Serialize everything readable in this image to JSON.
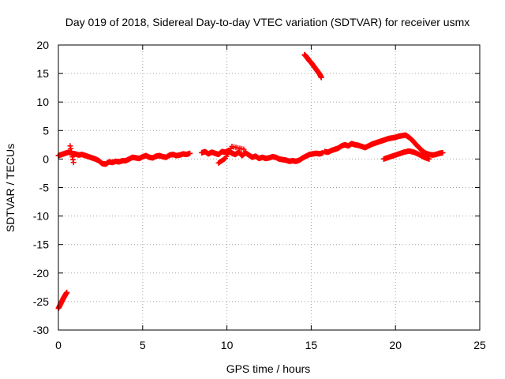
{
  "chart_data": {
    "type": "scatter",
    "title": "Day 019 of 2018, Sidereal Day-to-day VTEC variation (SDTVAR) for receiver usmx",
    "xlabel": "GPS time / hours",
    "ylabel": "SDTVAR / TECUs",
    "xlim": [
      0,
      25
    ],
    "ylim": [
      -30,
      20
    ],
    "xticks": [
      "0",
      "5",
      "10",
      "15",
      "20",
      "25"
    ],
    "yticks": [
      "20",
      "15",
      "10",
      "5",
      "0",
      "-5",
      "-10",
      "-15",
      "-20",
      "-25",
      "-30"
    ],
    "xtick_values": [
      0,
      5,
      10,
      15,
      20,
      25
    ],
    "ytick_values": [
      20,
      15,
      10,
      5,
      0,
      -5,
      -10,
      -15,
      -20,
      -25,
      -30
    ],
    "grid": true,
    "marker": "+",
    "color": "#ff0000",
    "series": [
      {
        "name": "usmx SDTVAR",
        "segments": [
          {
            "x": [
              0.0,
              0.1,
              0.2,
              0.3,
              0.4,
              0.5
            ],
            "y": [
              -26.2,
              -25.6,
              -25.0,
              -24.4,
              -23.9,
              -23.4
            ]
          },
          {
            "x": [
              0.0,
              0.2,
              0.4,
              0.6,
              0.8,
              1.0,
              1.2,
              1.4,
              1.6,
              1.8,
              2.0,
              2.2,
              2.4,
              2.6,
              2.8,
              3.0,
              3.2,
              3.4,
              3.6,
              3.8,
              4.0,
              4.2,
              4.4,
              4.6,
              4.8,
              5.0,
              5.2,
              5.4,
              5.6,
              5.8,
              6.0,
              6.2,
              6.4,
              6.6,
              6.8,
              7.0,
              7.2,
              7.4,
              7.6,
              7.8
            ],
            "y": [
              0.6,
              0.8,
              1.0,
              1.2,
              1.0,
              0.9,
              0.7,
              0.8,
              0.6,
              0.4,
              0.2,
              0.0,
              -0.3,
              -0.8,
              -0.9,
              -0.5,
              -0.6,
              -0.4,
              -0.5,
              -0.3,
              -0.3,
              0.0,
              0.3,
              0.2,
              0.1,
              0.4,
              0.6,
              0.3,
              0.2,
              0.5,
              0.6,
              0.4,
              0.3,
              0.7,
              0.8,
              0.6,
              0.7,
              0.9,
              0.8,
              1.0
            ]
          },
          {
            "x": [
              0.7,
              0.9
            ],
            "y": [
              2.3,
              -0.6
            ]
          },
          {
            "x": [
              8.5,
              8.7,
              8.9,
              9.1,
              9.3,
              9.5,
              9.7,
              9.9,
              10.1,
              10.3,
              10.5,
              10.7,
              10.9,
              11.1,
              11.3,
              11.5,
              11.7,
              11.9,
              12.1,
              12.3,
              12.5,
              12.7,
              12.9,
              13.1,
              13.3,
              13.5,
              13.7,
              13.9,
              14.1,
              14.3,
              14.5,
              14.7,
              14.9,
              15.1,
              15.3,
              15.5,
              15.7
            ],
            "y": [
              1.1,
              1.3,
              0.9,
              1.2,
              1.0,
              0.8,
              1.3,
              1.2,
              1.5,
              1.0,
              0.8,
              1.2,
              0.6,
              1.1,
              0.7,
              0.3,
              0.5,
              0.1,
              0.3,
              0.1,
              0.2,
              0.4,
              0.3,
              0.0,
              -0.1,
              -0.2,
              -0.4,
              -0.3,
              -0.4,
              -0.2,
              0.2,
              0.5,
              0.8,
              0.9,
              1.0,
              0.9,
              1.1
            ]
          },
          {
            "x": [
              9.5,
              9.9,
              10.3,
              11.0
            ],
            "y": [
              -0.7,
              0.1,
              2.2,
              1.7
            ]
          },
          {
            "x": [
              15.8,
              16.0,
              16.2,
              16.4,
              16.6,
              16.8,
              17.0,
              17.2,
              17.4,
              17.6,
              17.8,
              18.0,
              18.2,
              18.4,
              18.6,
              18.8,
              19.0,
              19.2,
              19.4,
              19.6,
              19.8,
              20.0,
              20.2,
              20.4,
              20.6,
              20.8,
              21.0,
              21.2,
              21.4,
              21.6,
              21.8,
              22.0,
              22.2,
              22.4,
              22.6,
              22.8
            ],
            "y": [
              1.3,
              1.2,
              1.5,
              1.7,
              1.9,
              2.3,
              2.5,
              2.3,
              2.7,
              2.5,
              2.4,
              2.2,
              2.0,
              2.3,
              2.6,
              2.8,
              3.0,
              3.2,
              3.4,
              3.6,
              3.7,
              3.8,
              4.0,
              4.1,
              4.2,
              3.8,
              3.3,
              2.6,
              2.0,
              1.4,
              1.0,
              0.8,
              0.7,
              0.8,
              1.0,
              1.1
            ]
          },
          {
            "x": [
              19.3,
              19.6,
              19.9,
              20.2,
              20.5,
              20.8,
              21.1,
              21.4,
              21.7,
              22.0
            ],
            "y": [
              0.0,
              0.3,
              0.6,
              0.9,
              1.2,
              1.4,
              1.2,
              0.8,
              0.3,
              0.0
            ]
          },
          {
            "x": [
              14.6,
              14.7,
              14.8,
              14.9,
              15.0,
              15.1,
              15.2,
              15.3,
              15.4,
              15.5,
              15.6
            ],
            "y": [
              18.3,
              18.0,
              17.6,
              17.2,
              16.9,
              16.5,
              16.1,
              15.7,
              15.3,
              14.9,
              14.3
            ]
          }
        ]
      }
    ]
  }
}
